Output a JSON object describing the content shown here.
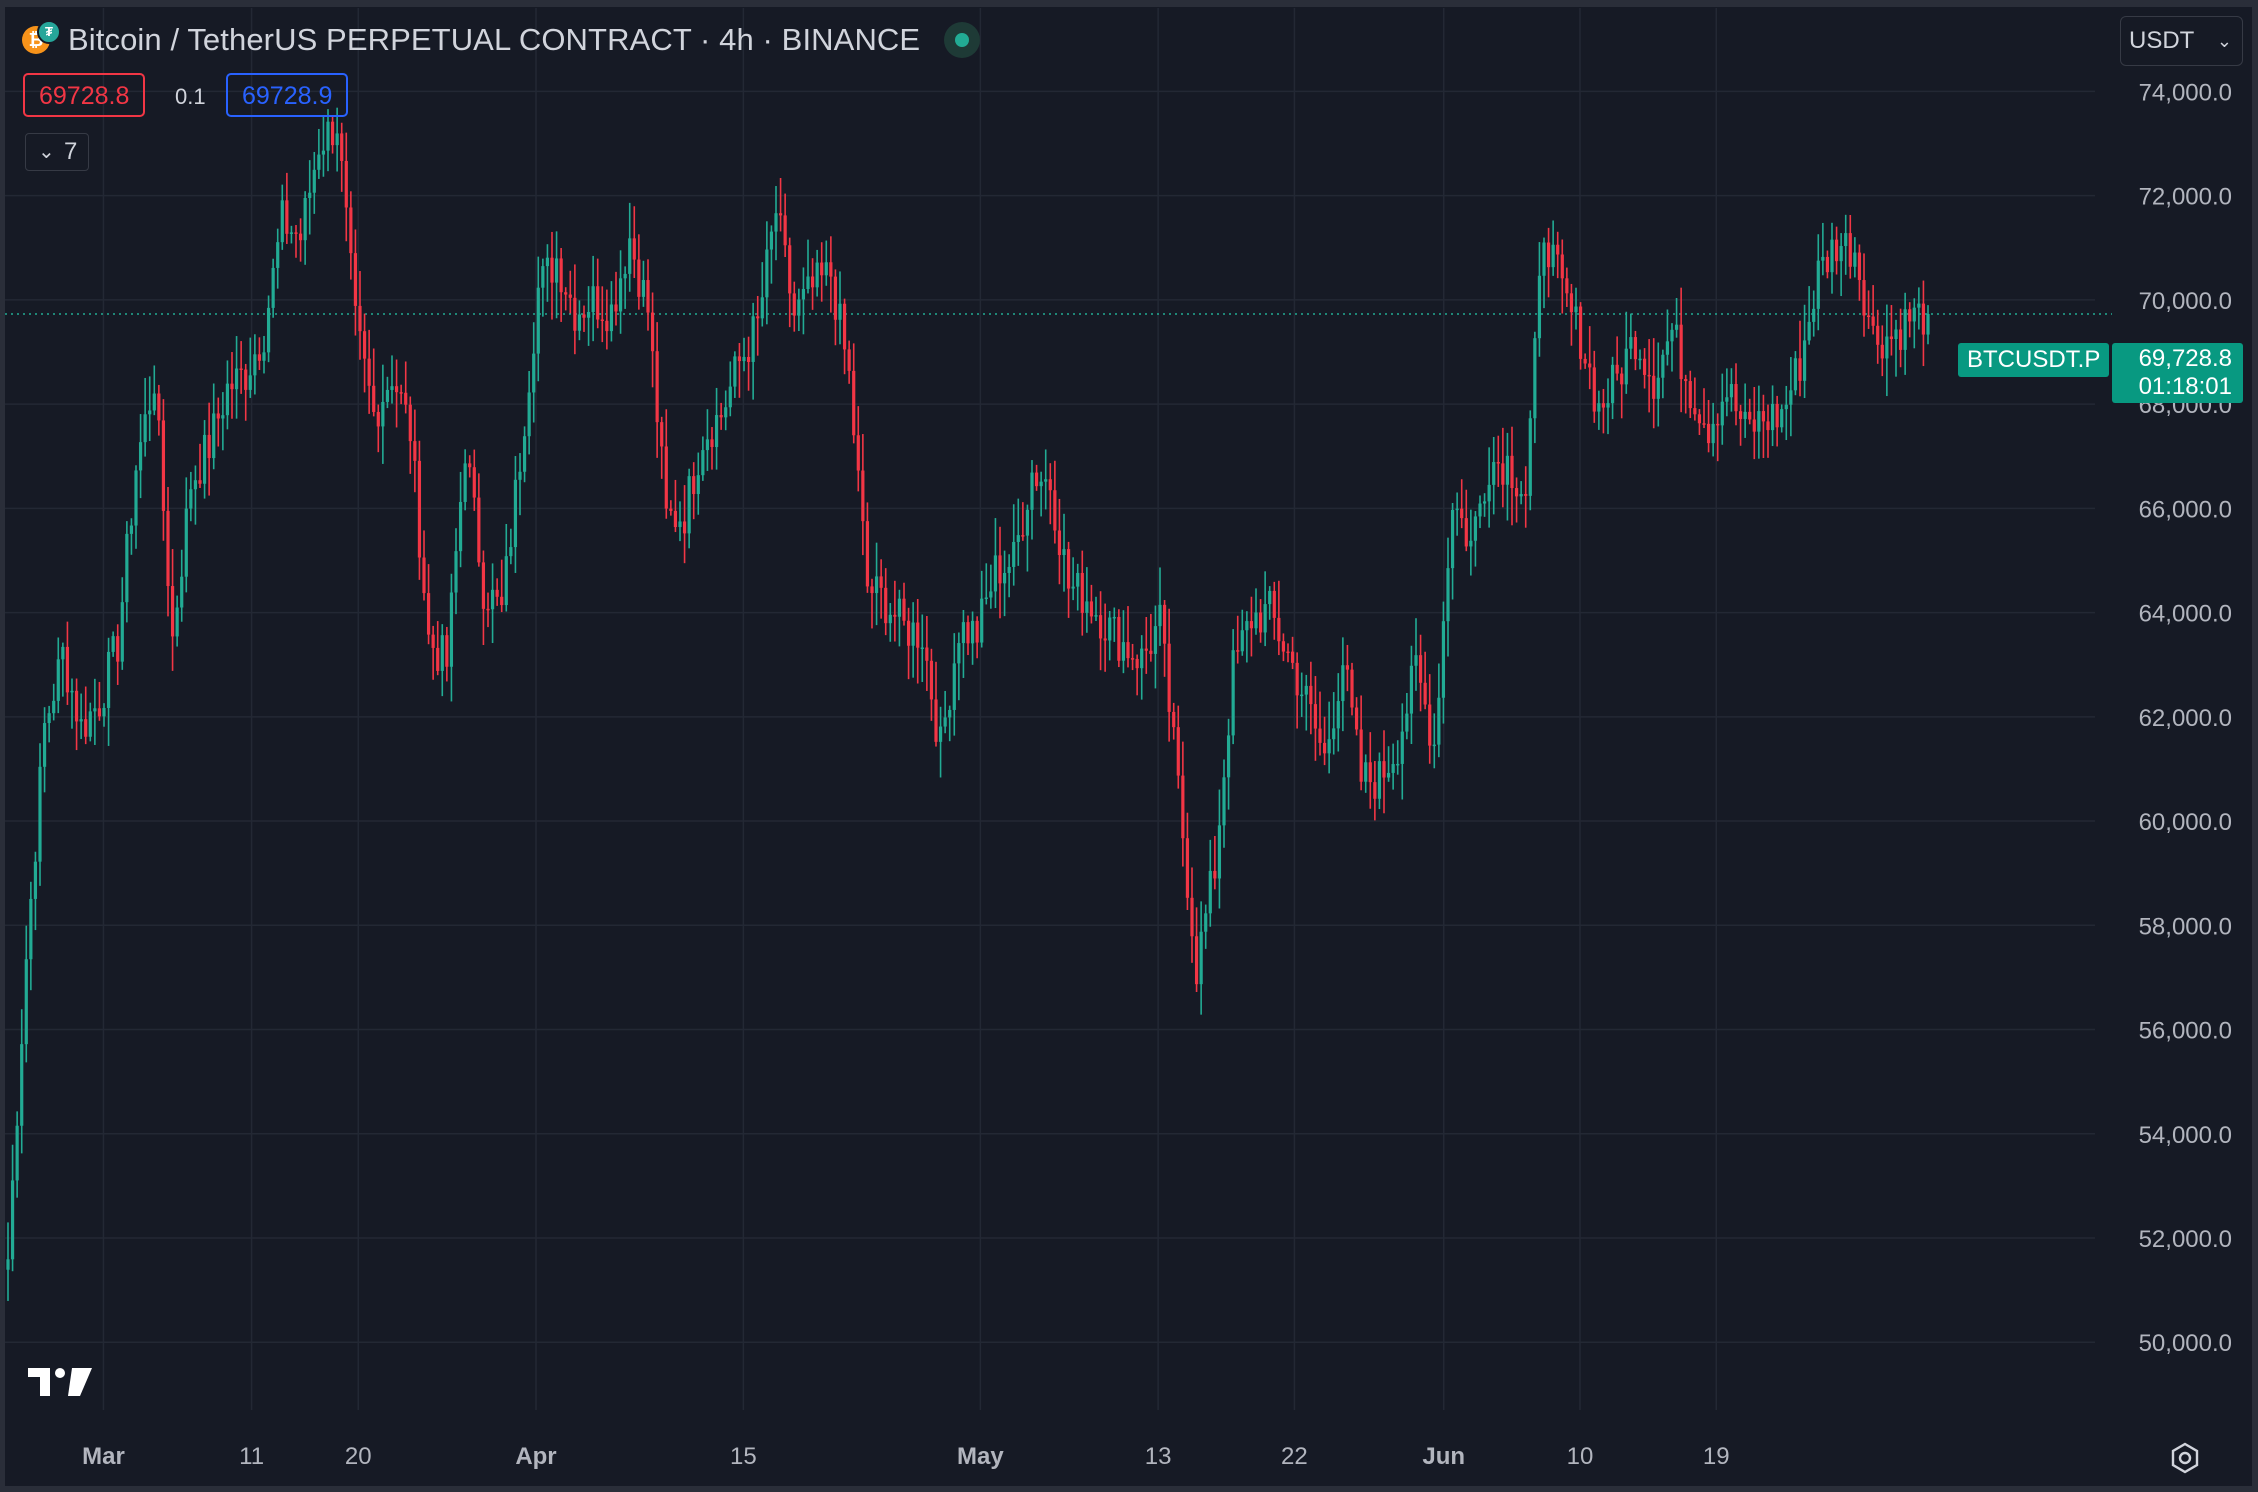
{
  "header": {
    "title": "Bitcoin / TetherUS PERPETUAL CONTRACT · 4h · BINANCE",
    "coin_icon": "bitcoin-icon",
    "quote_icon": "tether-icon",
    "market_status": "market-open",
    "sell_price": "69728.8",
    "spread": "0.1",
    "buy_price": "69728.9",
    "indicators_count": "7",
    "currency": "USDT"
  },
  "colors": {
    "background": "#161a25",
    "up": "#22ab94",
    "down": "#f23645",
    "grid": "#232834",
    "axis_text": "#b2b5be",
    "last_price_tag": "#089981"
  },
  "last_price": {
    "symbol": "BTCUSDT.P",
    "price": "69,728.8",
    "countdown": "01:18:01"
  },
  "chart_data": {
    "type": "candlestick",
    "interval": "4h",
    "ylim": [
      48700,
      75600
    ],
    "y_ticks": [
      "50,000.0",
      "52,000.0",
      "54,000.0",
      "56,000.0",
      "58,000.0",
      "60,000.0",
      "62,000.0",
      "64,000.0",
      "66,000.0",
      "68,000.0",
      "70,000.0",
      "72,000.0",
      "74,000.0"
    ],
    "x_ticks": [
      "Mar",
      "11",
      "20",
      "Apr",
      "15",
      "May",
      "13",
      "22",
      "Jun",
      "10",
      "19"
    ],
    "grid": true,
    "last_price_line": 69728.8,
    "series": [
      {
        "date": "Feb 28",
        "close": 51600
      },
      {
        "date": "Feb 29",
        "close": 57400
      },
      {
        "date": "Feb 29",
        "close": 61800
      },
      {
        "date": "Mar 1",
        "close": 63200
      },
      {
        "date": "Mar 2",
        "close": 61800
      },
      {
        "date": "Mar 3",
        "close": 62300
      },
      {
        "date": "Mar 4",
        "close": 63400
      },
      {
        "date": "Mar 4",
        "close": 66800
      },
      {
        "date": "Mar 5",
        "close": 68500
      },
      {
        "date": "Mar 5",
        "close": 63500
      },
      {
        "date": "Mar 6",
        "close": 66500
      },
      {
        "date": "Mar 7",
        "close": 67200
      },
      {
        "date": "Mar 8",
        "close": 68300
      },
      {
        "date": "Mar 9",
        "close": 68600
      },
      {
        "date": "Mar 10",
        "close": 69400
      },
      {
        "date": "Mar 11",
        "close": 71500
      },
      {
        "date": "Mar 12",
        "close": 71200
      },
      {
        "date": "Mar 13",
        "close": 73000
      },
      {
        "date": "Mar 14",
        "close": 73400
      },
      {
        "date": "Mar 15",
        "close": 69500
      },
      {
        "date": "Mar 16",
        "close": 67800
      },
      {
        "date": "Mar 17",
        "close": 68600
      },
      {
        "date": "Mar 18",
        "close": 67500
      },
      {
        "date": "Mar 19",
        "close": 63500
      },
      {
        "date": "Mar 20",
        "close": 63000
      },
      {
        "date": "Mar 21",
        "close": 67200
      },
      {
        "date": "Mar 22",
        "close": 64500
      },
      {
        "date": "Mar 23",
        "close": 64000
      },
      {
        "date": "Mar 25",
        "close": 67000
      },
      {
        "date": "Mar 26",
        "close": 70200
      },
      {
        "date": "Mar 27",
        "close": 70800
      },
      {
        "date": "Mar 28",
        "close": 69800
      },
      {
        "date": "Mar 29",
        "close": 70000
      },
      {
        "date": "Mar 30",
        "close": 69800
      },
      {
        "date": "Mar 31",
        "close": 71200
      },
      {
        "date": "Apr 1",
        "close": 69800
      },
      {
        "date": "Apr 2",
        "close": 65800
      },
      {
        "date": "Apr 3",
        "close": 65900
      },
      {
        "date": "Apr 4",
        "close": 67400
      },
      {
        "date": "Apr 5",
        "close": 67800
      },
      {
        "date": "Apr 6",
        "close": 68800
      },
      {
        "date": "Apr 7",
        "close": 69500
      },
      {
        "date": "Apr 8",
        "close": 71700
      },
      {
        "date": "Apr 9",
        "close": 69700
      },
      {
        "date": "Apr 10",
        "close": 70200
      },
      {
        "date": "Apr 11",
        "close": 70500
      },
      {
        "date": "Apr 12",
        "close": 68500
      },
      {
        "date": "Apr 13",
        "close": 64500
      },
      {
        "date": "Apr 14",
        "close": 64200
      },
      {
        "date": "Apr 15",
        "close": 63700
      },
      {
        "date": "Apr 16",
        "close": 63600
      },
      {
        "date": "Apr 17",
        "close": 61400
      },
      {
        "date": "Apr 18",
        "close": 63700
      },
      {
        "date": "Apr 19",
        "close": 63600
      },
      {
        "date": "Apr 20",
        "close": 64800
      },
      {
        "date": "Apr 21",
        "close": 65000
      },
      {
        "date": "Apr 22",
        "close": 66700
      },
      {
        "date": "Apr 23",
        "close": 66500
      },
      {
        "date": "Apr 24",
        "close": 64500
      },
      {
        "date": "Apr 25",
        "close": 64300
      },
      {
        "date": "Apr 26",
        "close": 63800
      },
      {
        "date": "Apr 27",
        "close": 63400
      },
      {
        "date": "Apr 28",
        "close": 63100
      },
      {
        "date": "Apr 29",
        "close": 63800
      },
      {
        "date": "Apr 30",
        "close": 60600
      },
      {
        "date": "May 1",
        "close": 57200
      },
      {
        "date": "May 2",
        "close": 59100
      },
      {
        "date": "May 3",
        "close": 62900
      },
      {
        "date": "May 4",
        "close": 63900
      },
      {
        "date": "May 5",
        "close": 64000
      },
      {
        "date": "May 6",
        "close": 63200
      },
      {
        "date": "May 7",
        "close": 62300
      },
      {
        "date": "May 8",
        "close": 61200
      },
      {
        "date": "May 9",
        "close": 63100
      },
      {
        "date": "May 10",
        "close": 60800
      },
      {
        "date": "May 11",
        "close": 60800
      },
      {
        "date": "May 12",
        "close": 61500
      },
      {
        "date": "May 13",
        "close": 62900
      },
      {
        "date": "May 14",
        "close": 61500
      },
      {
        "date": "May 15",
        "close": 66200
      },
      {
        "date": "May 16",
        "close": 65300
      },
      {
        "date": "May 17",
        "close": 66900
      },
      {
        "date": "May 18",
        "close": 66900
      },
      {
        "date": "May 19",
        "close": 66300
      },
      {
        "date": "May 20",
        "close": 71400
      },
      {
        "date": "May 21",
        "close": 70100
      },
      {
        "date": "May 22",
        "close": 69300
      },
      {
        "date": "May 23",
        "close": 67900
      },
      {
        "date": "May 24",
        "close": 68500
      },
      {
        "date": "May 25",
        "close": 69300
      },
      {
        "date": "May 26",
        "close": 68500
      },
      {
        "date": "May 27",
        "close": 69400
      },
      {
        "date": "May 28",
        "close": 68300
      },
      {
        "date": "May 29",
        "close": 67600
      },
      {
        "date": "May 30",
        "close": 68300
      },
      {
        "date": "May 31",
        "close": 67500
      },
      {
        "date": "Jun 1",
        "close": 67700
      },
      {
        "date": "Jun 2",
        "close": 67800
      },
      {
        "date": "Jun 3",
        "close": 68800
      },
      {
        "date": "Jun 4",
        "close": 70500
      },
      {
        "date": "Jun 5",
        "close": 71100
      },
      {
        "date": "Jun 6",
        "close": 71000
      },
      {
        "date": "Jun 7",
        "close": 69300
      },
      {
        "date": "Jun 8",
        "close": 69300
      },
      {
        "date": "Jun 9",
        "close": 69650
      },
      {
        "date": "Jun 10",
        "close": 69728.8
      }
    ]
  }
}
